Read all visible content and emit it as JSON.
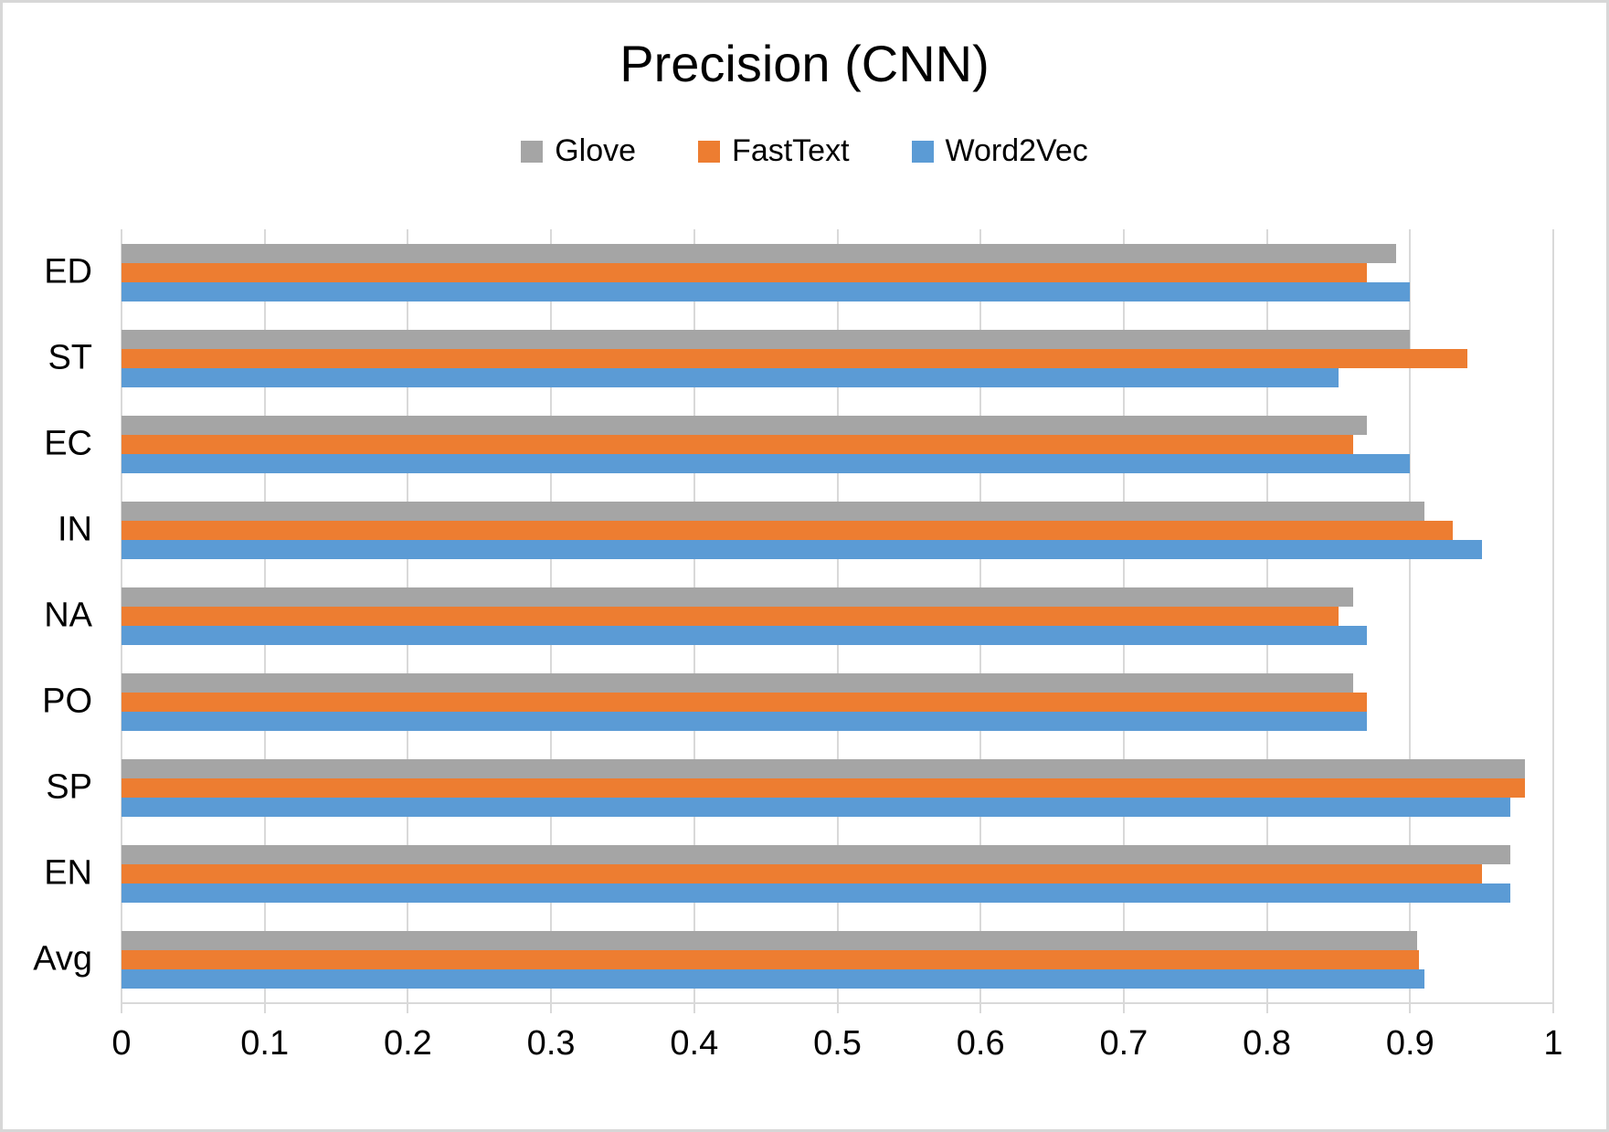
{
  "chart_data": {
    "type": "bar",
    "orientation": "horizontal",
    "title": "Precision (CNN)",
    "categories": [
      "ED",
      "ST",
      "EC",
      "IN",
      "NA",
      "PO",
      "SP",
      "EN",
      "Avg"
    ],
    "series": [
      {
        "name": "Glove",
        "color": "#A5A5A5",
        "values": [
          0.89,
          0.9,
          0.87,
          0.91,
          0.86,
          0.86,
          0.98,
          0.97,
          0.905
        ]
      },
      {
        "name": "FastText",
        "color": "#ED7D31",
        "values": [
          0.87,
          0.94,
          0.86,
          0.93,
          0.85,
          0.87,
          0.98,
          0.95,
          0.906
        ]
      },
      {
        "name": "Word2Vec",
        "color": "#5B9BD5",
        "values": [
          0.9,
          0.85,
          0.9,
          0.95,
          0.87,
          0.87,
          0.97,
          0.97,
          0.91
        ]
      }
    ],
    "xlim": [
      0,
      1
    ],
    "x_ticks": [
      "0",
      "0.1",
      "0.2",
      "0.3",
      "0.4",
      "0.5",
      "0.6",
      "0.7",
      "0.8",
      "0.9",
      "1"
    ],
    "grid": "vertical",
    "legend_position": "top",
    "gridline_color": "#D9D9D9",
    "text_color": "#000000"
  }
}
